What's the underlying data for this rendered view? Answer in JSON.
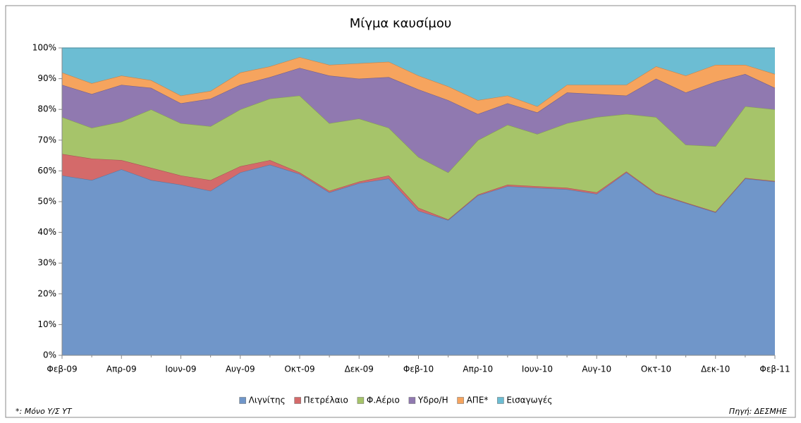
{
  "chart_data": {
    "type": "stacked_area_100",
    "title": "Μίγμα καυσίμου",
    "categories": [
      "Φεβ-09",
      null,
      "Απρ-09",
      null,
      "Ιουν-09",
      null,
      "Αυγ-09",
      null,
      "Οκτ-09",
      null,
      "Δεκ-09",
      null,
      "Φεβ-10",
      null,
      "Απρ-10",
      null,
      "Ιουν-10",
      null,
      "Αυγ-10",
      null,
      "Οκτ-10",
      null,
      "Δεκ-10",
      null,
      "Φεβ-11"
    ],
    "series": [
      {
        "name": "Λιγνίτης",
        "color": "#7096c9",
        "values": [
          58.5,
          57,
          60.5,
          57,
          55.5,
          53.5,
          59.5,
          62,
          59,
          53,
          56,
          57.5,
          47,
          44,
          52,
          55,
          54.5,
          54,
          52.5,
          59.5,
          52.5,
          49.5,
          46.5,
          57.5,
          56.5
        ]
      },
      {
        "name": "Πετρέλαιο",
        "color": "#d46a6a",
        "values": [
          7,
          7,
          3,
          4,
          3,
          3.5,
          2,
          1.5,
          0.5,
          0.5,
          0.5,
          1,
          1,
          0.2,
          0.3,
          0.5,
          0.5,
          0.5,
          0.5,
          0.3,
          0.3,
          0.2,
          0.2,
          0.2,
          0.2
        ]
      },
      {
        "name": "Φ.Αέριο",
        "color": "#a6c46a",
        "values": [
          12,
          10,
          12.5,
          19,
          17,
          17.5,
          18.5,
          20,
          25,
          22,
          20.5,
          15.5,
          16.5,
          15.3,
          17.7,
          19.5,
          17,
          21,
          24.5,
          18.7,
          24.7,
          18.8,
          21.3,
          23.3,
          23.3
        ]
      },
      {
        "name": "Υδρο/Η",
        "color": "#9079b0",
        "values": [
          10.5,
          11,
          12,
          7,
          6.5,
          9,
          8,
          7,
          9,
          15.5,
          13,
          16.5,
          22,
          23.5,
          8.5,
          7,
          7,
          10,
          7.5,
          6,
          12.5,
          17,
          21,
          10.5,
          7
        ]
      },
      {
        "name": "ΑΠΕ*",
        "color": "#f6a45e",
        "values": [
          4,
          3.5,
          3,
          2.5,
          2.5,
          2.5,
          4,
          3.5,
          3.5,
          3.5,
          5,
          5,
          4.5,
          4.5,
          4.5,
          2.5,
          2,
          2.5,
          3,
          3.5,
          4,
          5.5,
          5.5,
          3,
          4.5
        ]
      },
      {
        "name": "Εισαγωγές",
        "color": "#6cbdd3",
        "values": [
          8,
          11.5,
          9,
          10.5,
          15.5,
          14,
          8,
          6,
          3,
          5.5,
          5,
          4.5,
          9,
          12.5,
          17,
          15.5,
          19,
          12,
          12,
          12,
          6,
          9,
          5.5,
          5.5,
          8.5
        ]
      }
    ],
    "ylim": [
      0,
      100
    ],
    "yticks": [
      {
        "value": 0,
        "label": "0%"
      },
      {
        "value": 10,
        "label": "10%"
      },
      {
        "value": 20,
        "label": "20%"
      },
      {
        "value": 30,
        "label": "30%"
      },
      {
        "value": 40,
        "label": "40%"
      },
      {
        "value": 50,
        "label": "50%"
      },
      {
        "value": 60,
        "label": "60%"
      },
      {
        "value": 70,
        "label": "70%"
      },
      {
        "value": 80,
        "label": "80%"
      },
      {
        "value": 90,
        "label": "90%"
      },
      {
        "value": 100,
        "label": "100%"
      }
    ],
    "grid": false,
    "legend": "bottom",
    "footnote": "*: Μόνο Υ/Σ ΥΤ",
    "source": "Πηγή: ΔΕΣΜΗΕ"
  }
}
